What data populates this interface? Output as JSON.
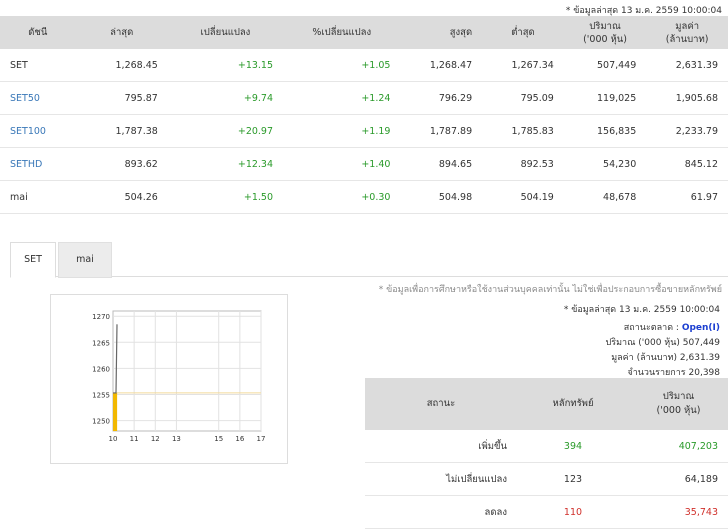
{
  "header": {
    "update_note": "* ข้อมูลล่าสุด 13 ม.ค. 2559 10:00:04"
  },
  "index_table": {
    "columns": [
      "ดัชนี",
      "ล่าสุด",
      "เปลี่ยนแปลง",
      "%เปลี่ยนแปลง",
      "สูงสุด",
      "ต่ำสุด",
      "ปริมาณ\n('000 หุ้น)",
      "มูลค่า\n(ล้านบาท)"
    ],
    "rows": [
      {
        "name": "SET",
        "last": "1,268.45",
        "change": "+13.15",
        "pct": "+1.05",
        "high": "1,268.47",
        "low": "1,267.34",
        "volume": "507,449",
        "value": "2,631.39"
      },
      {
        "name": "SET50",
        "last": "795.87",
        "change": "+9.74",
        "pct": "+1.24",
        "high": "796.29",
        "low": "795.09",
        "volume": "119,025",
        "value": "1,905.68"
      },
      {
        "name": "SET100",
        "last": "1,787.38",
        "change": "+20.97",
        "pct": "+1.19",
        "high": "1,787.89",
        "low": "1,785.83",
        "volume": "156,835",
        "value": "2,233.79"
      },
      {
        "name": "SETHD",
        "last": "893.62",
        "change": "+12.34",
        "pct": "+1.40",
        "high": "894.65",
        "low": "892.53",
        "volume": "54,230",
        "value": "845.12"
      },
      {
        "name": "mai",
        "last": "504.26",
        "change": "+1.50",
        "pct": "+0.30",
        "high": "504.98",
        "low": "504.19",
        "volume": "48,678",
        "value": "61.97"
      }
    ]
  },
  "tabs": [
    "SET",
    "mai"
  ],
  "disclaimer": "* ข้อมูลเพื่อการศึกษาหรือใช้งานส่วนบุคคลเท่านั้น ไม่ใช่เพื่อประกอบการซื้อขายหลักทรัพย์",
  "market_info": {
    "update_note": "* ข้อมูลล่าสุด 13 ม.ค. 2559 10:00:04",
    "status_label": "สถานะตลาด :",
    "status_value": "Open(I)",
    "volume_label": "ปริมาณ ('000 หุ้น)",
    "volume_value": "507,449",
    "value_label": "มูลค่า (ล้านบาท)",
    "value_value": "2,631.39",
    "deals_label": "จำนวนรายการ",
    "deals_value": "20,398"
  },
  "breadth_table": {
    "columns": [
      "สถานะ",
      "หลักทรัพย์",
      "ปริมาณ\n('000 หุ้น)"
    ],
    "rows": [
      {
        "status": "เพิ่มขึ้น",
        "count": "394",
        "volume": "407,203"
      },
      {
        "status": "ไม่เปลี่ยนแปลง",
        "count": "123",
        "volume": "64,189"
      },
      {
        "status": "ลดลง",
        "count": "110",
        "volume": "35,743"
      }
    ]
  },
  "colors": {
    "up": "#2a9a2a",
    "down": "#d0302b",
    "link": "#3a78b8",
    "open": "#1c3fd1",
    "bar": "#f2b800"
  },
  "chart_data": {
    "type": "line",
    "x_ticks": [
      "10",
      "11",
      "12",
      "13",
      "15",
      "16",
      "17"
    ],
    "y_ticks": [
      "1270",
      "1265",
      "1260",
      "1255",
      "1250"
    ],
    "ylim": [
      1248,
      1271
    ],
    "series": [
      {
        "values": [
          1255.3,
          1255.3,
          1268.45
        ]
      }
    ],
    "reference_line": 1255.3,
    "volume_bar_hours": [
      10.0,
      10.1
    ],
    "grid": true
  }
}
